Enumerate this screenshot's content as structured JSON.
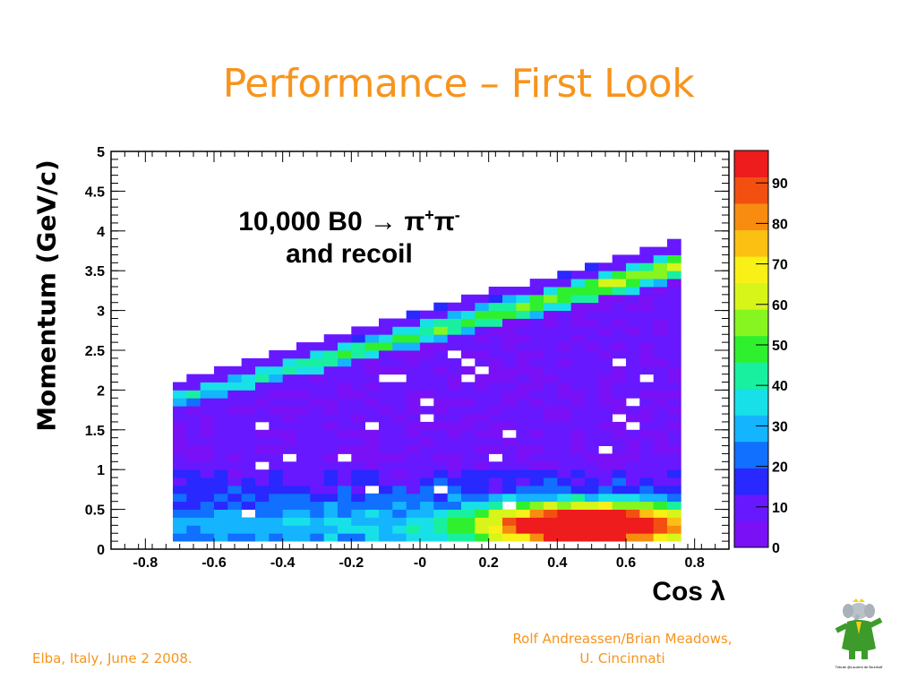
{
  "slide": {
    "title": "Performance – First Look",
    "footer_left": "Elba, Italy, June 2 2008.",
    "footer_right_line1": "Rolf Andreassen/Brian Meadows,",
    "footer_right_line2": "U. Cincinnati",
    "logo_icon": "elephant-mascot-icon",
    "logo_caption": "Tribute @Laurent de Brunhoff"
  },
  "chart_data": {
    "type": "heatmap",
    "xlabel": "Cos λ",
    "ylabel": "Momentum (GeV/c)",
    "annotation_line1_prefix": "10,000 B0 ",
    "annotation_arrow": "→",
    "annotation_pi": "π",
    "annotation_plus": "+",
    "annotation_minus": "-",
    "annotation_line2": "and recoil",
    "xlim": [
      -0.9,
      0.9
    ],
    "ylim": [
      0,
      5
    ],
    "x_ticks": [
      "-0.8",
      "-0.6",
      "-0.4",
      "-0.2",
      "-0",
      "0.2",
      "0.4",
      "0.6",
      "0.8"
    ],
    "x_tick_values": [
      -0.8,
      -0.6,
      -0.4,
      -0.2,
      0,
      0.2,
      0.4,
      0.6,
      0.8
    ],
    "y_ticks": [
      "0",
      "0.5",
      "1",
      "1.5",
      "2",
      "2.5",
      "3",
      "3.5",
      "4",
      "4.5",
      "5"
    ],
    "y_tick_values": [
      0,
      0.5,
      1,
      1.5,
      2,
      2.5,
      3,
      3.5,
      4,
      4.5,
      5
    ],
    "z_ticks": [
      "0",
      "10",
      "20",
      "30",
      "40",
      "50",
      "60",
      "70",
      "80",
      "90"
    ],
    "z_tick_values": [
      0,
      10,
      20,
      30,
      40,
      50,
      60,
      70,
      80,
      90
    ],
    "zlim": [
      0,
      98
    ],
    "bin_width_x": 0.04,
    "bin_height_y": 0.1,
    "populated_x_range": [
      -0.72,
      0.76
    ],
    "signal_band": {
      "description": "momentum band rising with cos λ",
      "x_start": -0.7,
      "p_low_start": 1.85,
      "p_high_start": 1.95,
      "x_end": 0.76,
      "p_low_end": 3.45,
      "p_high_end": 3.7,
      "peak_count": 60
    },
    "recoil_region": {
      "p_range": [
        0.2,
        1.8
      ],
      "background_count": 5,
      "low_momentum_peak_x": 0.48,
      "low_momentum_peak_p": 0.3,
      "max_count": 98
    },
    "colors": [
      "#7a10f5",
      "#6818ff",
      "#2828ff",
      "#1170ff",
      "#14b4ff",
      "#18e0e8",
      "#18f0a0",
      "#2ef02e",
      "#86f520",
      "#d8f51a",
      "#f8f016",
      "#fbc012",
      "#f88c10",
      "#f25010",
      "#ee1c1c"
    ]
  }
}
